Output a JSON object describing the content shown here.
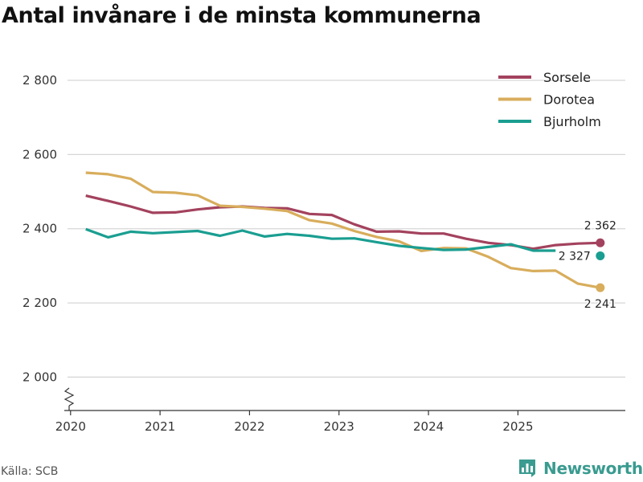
{
  "title": "Antal invånare i de minsta kommunerna",
  "source": "Källa: SCB",
  "brand": {
    "name": "Newsworthy",
    "icon": "newsworthy-logo-icon",
    "color": "#3a9b90"
  },
  "chart_data": {
    "type": "line",
    "title": "Antal invånare i de minsta kommunerna",
    "xlabel": "",
    "ylabel": "",
    "xlim": [
      2019.93,
      2026.2
    ],
    "ylim": [
      1910,
      2930
    ],
    "y_axis_break": true,
    "grid": true,
    "legend_position": "top-right",
    "x_ticks": [
      {
        "value": 2020,
        "label": "2020"
      },
      {
        "value": 2021,
        "label": "2021"
      },
      {
        "value": 2022,
        "label": "2022"
      },
      {
        "value": 2023,
        "label": "2023"
      },
      {
        "value": 2024,
        "label": "2024"
      },
      {
        "value": 2025,
        "label": "2025"
      }
    ],
    "y_ticks": [
      {
        "value": 2000,
        "label": "2 000"
      },
      {
        "value": 2200,
        "label": "2 200"
      },
      {
        "value": 2400,
        "label": "2 400"
      },
      {
        "value": 2600,
        "label": "2 600"
      },
      {
        "value": 2800,
        "label": "2 800"
      }
    ],
    "series": [
      {
        "name": "Sorsele",
        "color": "#a3425e",
        "end_label": "2 362",
        "end_label_position": "above",
        "x": [
          2020.17,
          2020.42,
          2020.67,
          2020.92,
          2021.17,
          2021.42,
          2021.67,
          2021.92,
          2022.17,
          2022.42,
          2022.67,
          2022.92,
          2023.17,
          2023.42,
          2023.67,
          2023.92,
          2024.17,
          2024.42,
          2024.67,
          2024.92,
          2025.17,
          2025.42,
          2025.67,
          2025.92
        ],
        "values": [
          2489,
          2475,
          2460,
          2443,
          2444,
          2452,
          2458,
          2460,
          2456,
          2455,
          2440,
          2437,
          2412,
          2392,
          2393,
          2387,
          2387,
          2373,
          2362,
          2356,
          2346,
          2356,
          2360,
          2362
        ]
      },
      {
        "name": "Dorotea",
        "color": "#d8ad5c",
        "end_label": "2 241",
        "end_label_position": "below",
        "x": [
          2020.17,
          2020.42,
          2020.67,
          2020.92,
          2021.17,
          2021.42,
          2021.67,
          2021.92,
          2022.17,
          2022.42,
          2022.67,
          2022.92,
          2023.17,
          2023.42,
          2023.67,
          2023.92,
          2024.17,
          2024.42,
          2024.67,
          2024.92,
          2025.17,
          2025.42,
          2025.67,
          2025.92
        ],
        "values": [
          2551,
          2547,
          2535,
          2499,
          2497,
          2490,
          2462,
          2459,
          2454,
          2448,
          2423,
          2414,
          2394,
          2378,
          2366,
          2340,
          2348,
          2347,
          2324,
          2294,
          2286,
          2287,
          2252,
          2241
        ]
      },
      {
        "name": "Bjurholm",
        "color": "#1a9e91",
        "end_label": "2 327",
        "end_label_position": "left",
        "x": [
          2020.17,
          2020.42,
          2020.67,
          2020.92,
          2021.17,
          2021.42,
          2021.67,
          2021.92,
          2022.17,
          2022.42,
          2022.67,
          2022.92,
          2023.17,
          2023.42,
          2023.67,
          2023.92,
          2024.17,
          2024.42,
          2024.67,
          2024.92,
          2025.17,
          2025.42,
          2025.92
        ],
        "values": [
          2399,
          2377,
          2392,
          2388,
          2391,
          2394,
          2381,
          2395,
          2379,
          2386,
          2381,
          2373,
          2374,
          2364,
          2354,
          2348,
          2343,
          2344,
          2351,
          2358,
          2341,
          2341,
          2327
        ],
        "final_point_detached": true
      }
    ]
  }
}
